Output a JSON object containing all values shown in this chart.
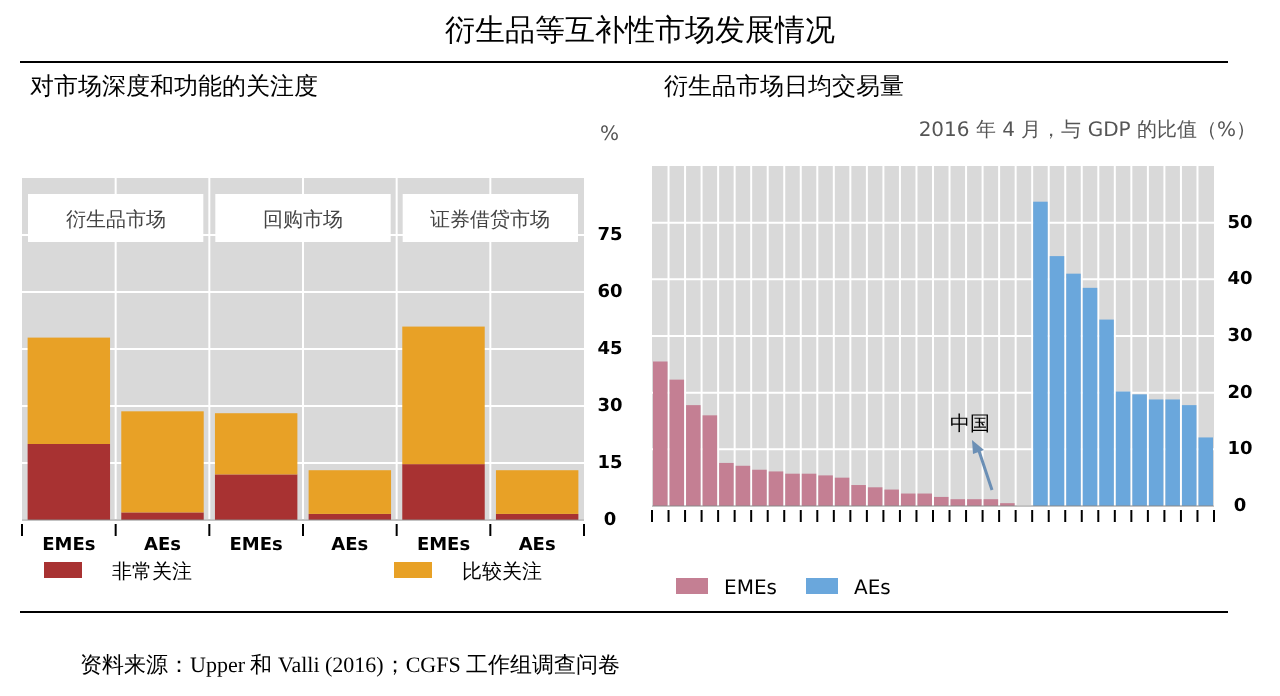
{
  "chart_data": [
    {
      "type": "bar",
      "title": "衍生品等互补性市场发展情况",
      "subtitle": "对市场深度和功能的关注度",
      "annotations": [
        "衍生品市场",
        "回购市场",
        "证券借贷市场",
        "资料来源：Upper 和 Valli (2016)；CGFS 工作组调查问卷"
      ],
      "ylabel": "%",
      "categories": [
        "EMEs",
        "AEs",
        "EMEs",
        "AEs",
        "EMEs",
        "AEs"
      ],
      "stacked": true,
      "series": [
        {
          "name": "非常关注",
          "color": "#a83232",
          "values": [
            20,
            2,
            12,
            1.6,
            14.7,
            1.6
          ]
        },
        {
          "name": "比较关注",
          "color": "#e8a126",
          "values": [
            28,
            26.6,
            16.1,
            11.5,
            36.2,
            11.5
          ]
        }
      ],
      "ylim": [
        0,
        90
      ],
      "yticks": [
        0,
        15,
        30,
        45,
        60,
        75
      ],
      "grid": true,
      "legend": "bottom"
    },
    {
      "type": "bar",
      "title": "衍生品市场日均交易量",
      "subtitle": "2016 年 4 月，与 GDP 的比值（%）",
      "annotations": [
        "中国"
      ],
      "categories": [
        null,
        null,
        null,
        null,
        null,
        null,
        null,
        null,
        null,
        null,
        null,
        null,
        null,
        null,
        null,
        null,
        null,
        null,
        null,
        null,
        null,
        null,
        null,
        null,
        null,
        null,
        null,
        null,
        null,
        null,
        null,
        null,
        null,
        null
      ],
      "stacked": true,
      "series": [
        {
          "name": "EMEs",
          "color": "#c47f93",
          "values": [
            25.5,
            22.3,
            17.8,
            16,
            7.6,
            7.1,
            6.4,
            6.1,
            5.7,
            5.7,
            5.4,
            5,
            3.7,
            3.3,
            2.9,
            2.2,
            2.2,
            1.6,
            1.2,
            1.2,
            1.2,
            0.5,
            null,
            null,
            null,
            null,
            null,
            null,
            null,
            null,
            null,
            null,
            null,
            null
          ]
        },
        {
          "name": "AEs",
          "color": "#6aa7dc",
          "values": [
            null,
            null,
            null,
            null,
            null,
            null,
            null,
            null,
            null,
            null,
            null,
            null,
            null,
            null,
            null,
            null,
            null,
            null,
            null,
            null,
            null,
            null,
            null,
            53.7,
            44.1,
            41,
            38.5,
            32.9,
            20.2,
            19.7,
            18.8,
            18.8,
            17.8,
            12.1
          ]
        }
      ],
      "ylim": [
        0,
        60
      ],
      "yticks": [
        0,
        10,
        20,
        30,
        40,
        50
      ],
      "grid": true,
      "legend": "bottom"
    }
  ]
}
